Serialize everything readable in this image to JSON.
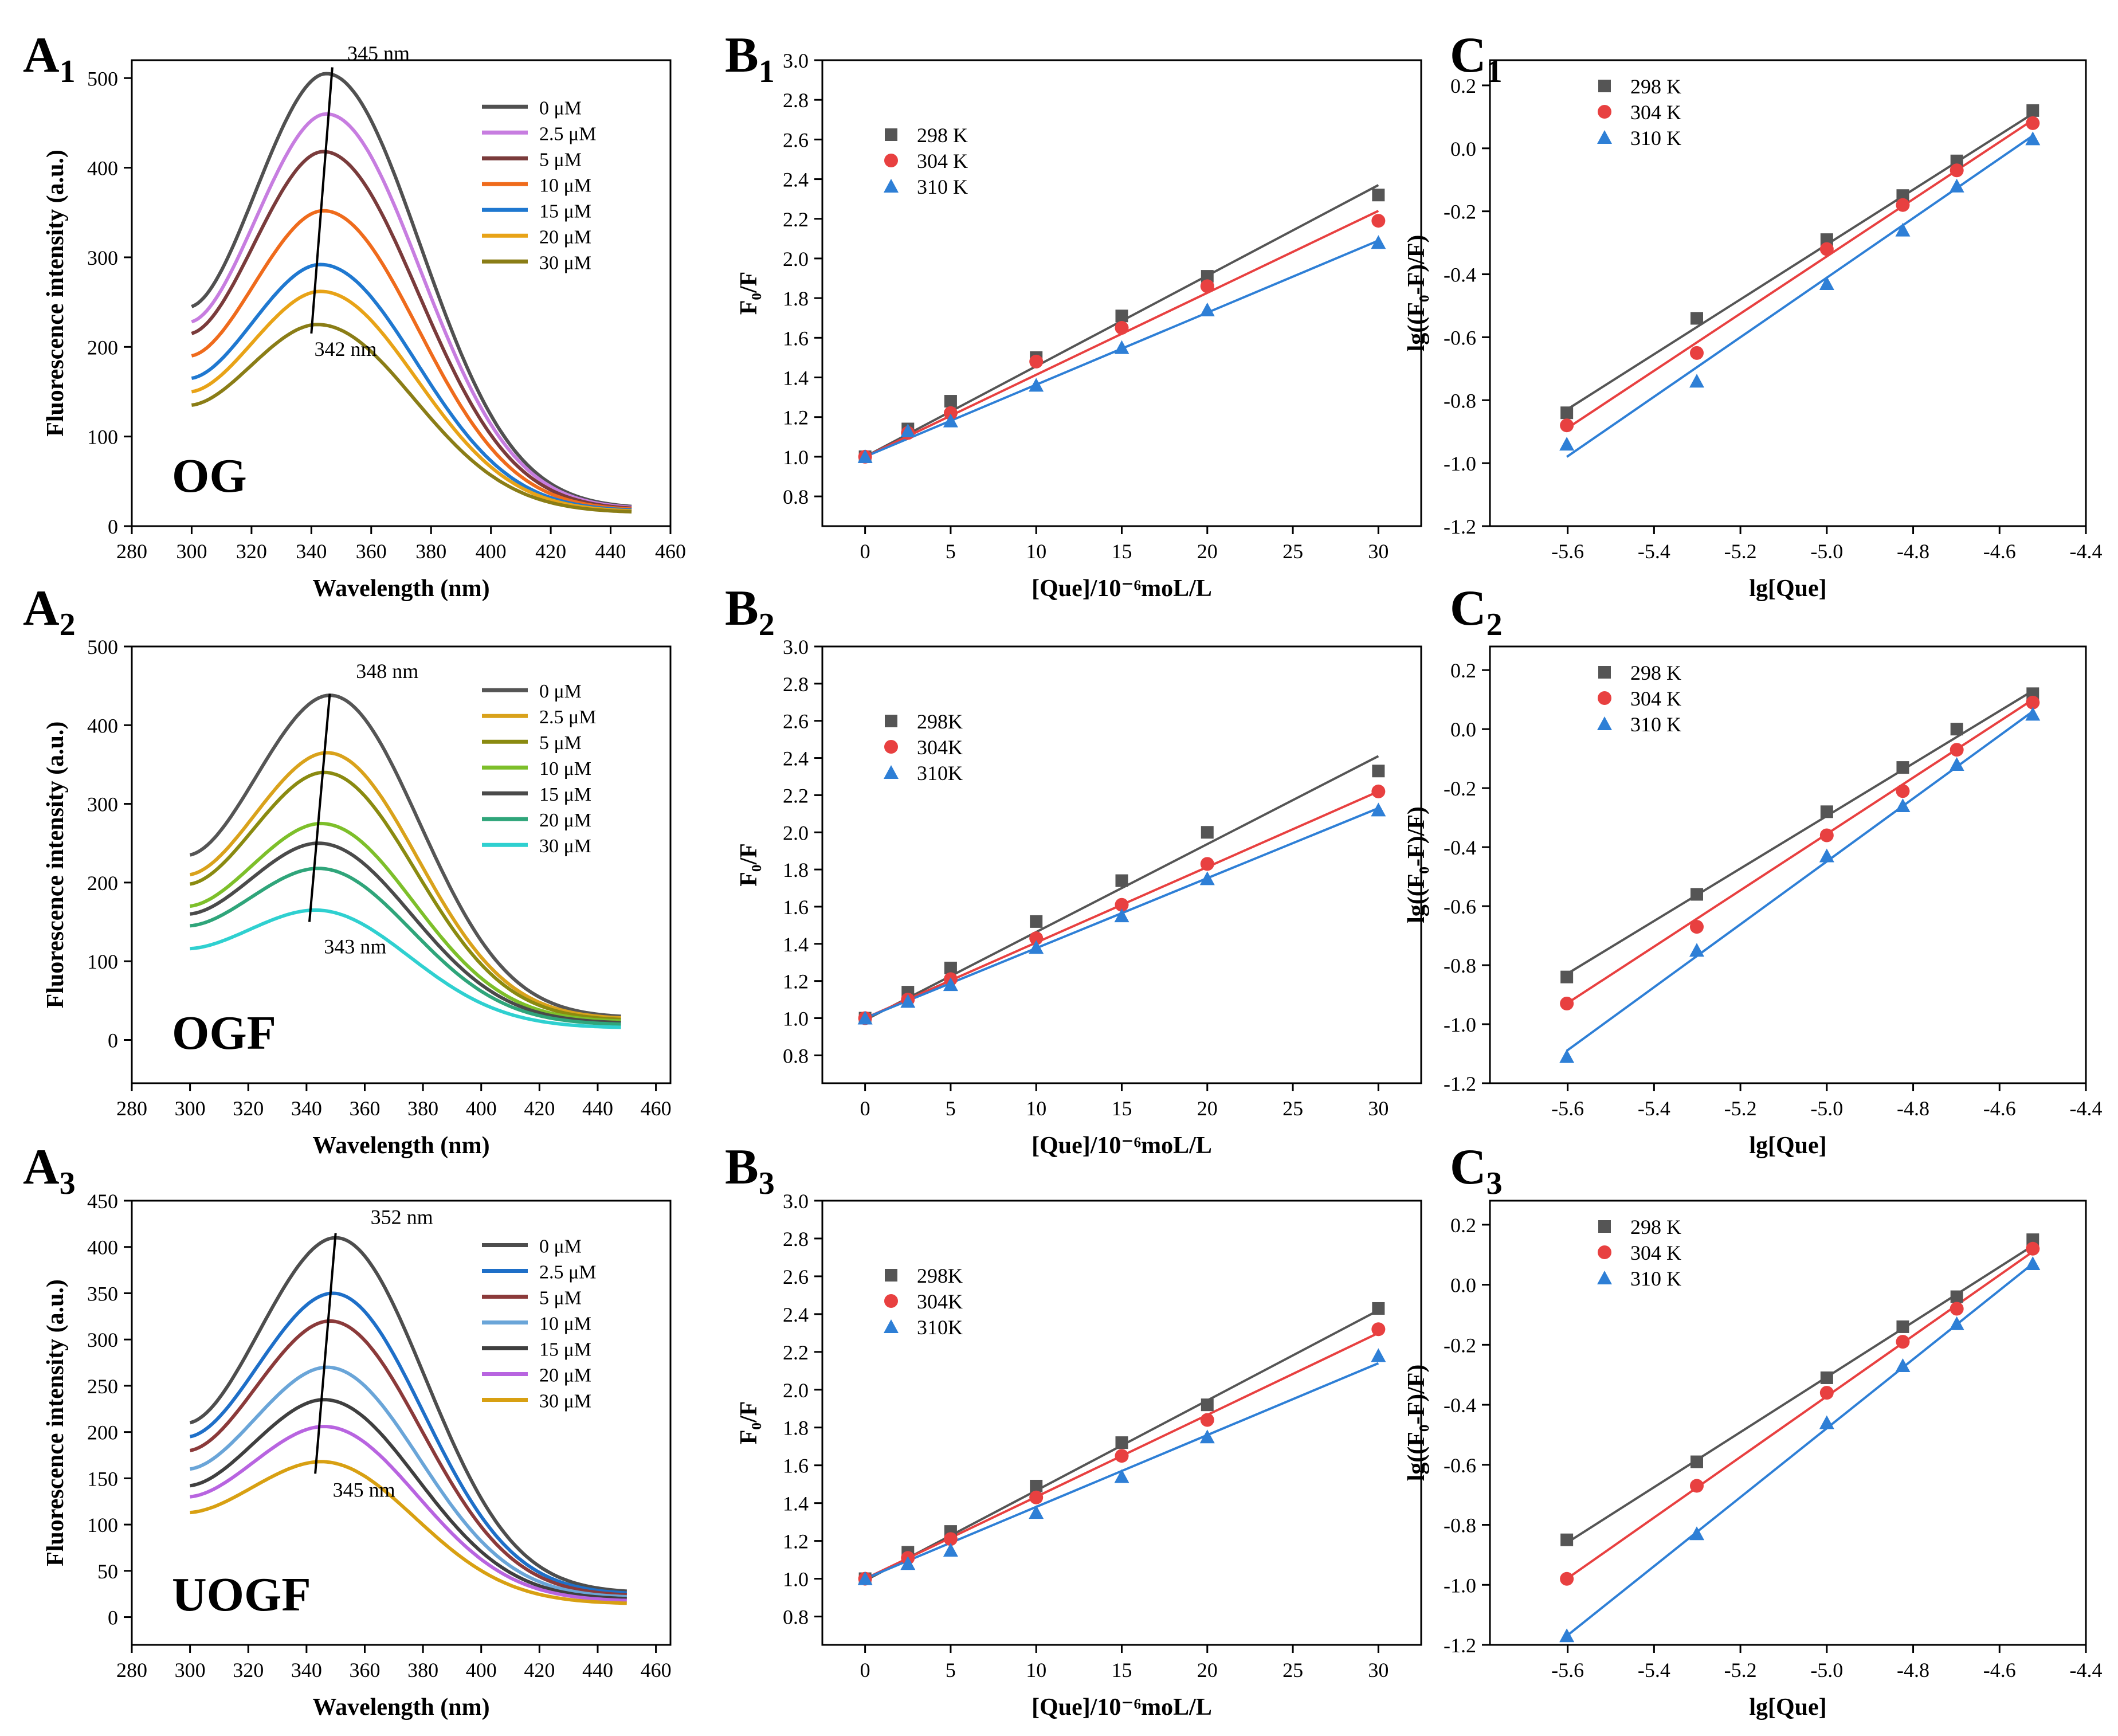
{
  "figure": {
    "background": "#ffffff"
  },
  "chart_data": [
    {
      "id": "A1",
      "type": "line",
      "panel_label": "A",
      "panel_sub": "1",
      "xlabel": "Wavelength (nm)",
      "ylabel": "Fluorescence intensity (a.u.)",
      "xlim": [
        280,
        460
      ],
      "ylim": [
        0,
        520
      ],
      "xticks": [
        280,
        300,
        320,
        340,
        360,
        380,
        400,
        420,
        440,
        460
      ],
      "yticks": [
        0,
        100,
        200,
        300,
        400,
        500
      ],
      "sample_label": "OG",
      "annotations": [
        {
          "text": "345 nm",
          "x": 352,
          "y": 520
        },
        {
          "text": "342 nm",
          "x": 341,
          "y": 190
        }
      ],
      "peak_line": {
        "from": [
          340,
          215
        ],
        "to": [
          347,
          512
        ]
      },
      "series": [
        {
          "name": "0 μM",
          "color": "#505050",
          "start": 245,
          "peak": 505,
          "peak_x": 345,
          "end": 22,
          "end_x": 447
        },
        {
          "name": "2.5 μM",
          "color": "#c77de0",
          "start": 228,
          "peak": 460,
          "peak_x": 345,
          "end": 21,
          "end_x": 447
        },
        {
          "name": "5 μM",
          "color": "#7a3b3b",
          "start": 215,
          "peak": 418,
          "peak_x": 344,
          "end": 20,
          "end_x": 447
        },
        {
          "name": "10 μM",
          "color": "#ef6b1c",
          "start": 190,
          "peak": 352,
          "peak_x": 344,
          "end": 19,
          "end_x": 447
        },
        {
          "name": "15 μM",
          "color": "#1f78d0",
          "start": 165,
          "peak": 292,
          "peak_x": 343,
          "end": 18,
          "end_x": 447
        },
        {
          "name": "20 μM",
          "color": "#e8a317",
          "start": 150,
          "peak": 262,
          "peak_x": 343,
          "end": 17,
          "end_x": 447
        },
        {
          "name": "30 μM",
          "color": "#8a7d16",
          "start": 135,
          "peak": 225,
          "peak_x": 342,
          "end": 16,
          "end_x": 447
        }
      ]
    },
    {
      "id": "B1",
      "type": "scatter",
      "panel_label": "B",
      "panel_sub": "1",
      "xlabel": "[Que]/10⁻⁶moL/L",
      "ylabel": "F₀/F",
      "xlim": [
        -2.5,
        32.5
      ],
      "ylim": [
        0.65,
        3.0
      ],
      "xticks": [
        0,
        5,
        10,
        15,
        20,
        25,
        30
      ],
      "yticks": [
        0.8,
        1.0,
        1.2,
        1.4,
        1.6,
        1.8,
        2.0,
        2.2,
        2.4,
        2.6,
        2.8,
        3.0
      ],
      "x": [
        0,
        2.5,
        5,
        10,
        15,
        20,
        30
      ],
      "series": [
        {
          "name": "298 K",
          "color": "#555555",
          "marker": "square",
          "values": [
            1.0,
            1.14,
            1.28,
            1.5,
            1.71,
            1.91,
            2.32
          ],
          "fit": [
            1.0,
            2.37
          ]
        },
        {
          "name": "304 K",
          "color": "#e84040",
          "marker": "circle",
          "values": [
            1.0,
            1.12,
            1.22,
            1.48,
            1.65,
            1.86,
            2.19
          ],
          "fit": [
            1.0,
            2.24
          ]
        },
        {
          "name": "310 K",
          "color": "#2e7fd6",
          "marker": "triangle",
          "values": [
            1.0,
            1.13,
            1.18,
            1.36,
            1.55,
            1.74,
            2.08
          ],
          "fit": [
            1.0,
            2.09
          ]
        }
      ]
    },
    {
      "id": "C1",
      "type": "scatter",
      "panel_label": "C",
      "panel_sub": "1",
      "xlabel": "lg[Que]",
      "ylabel": "lg((F₀-F)/F)",
      "xlim": [
        -5.78,
        -4.4
      ],
      "ylim": [
        -1.2,
        0.28
      ],
      "xticks": [
        -5.6,
        -5.4,
        -5.2,
        -5.0,
        -4.8,
        -4.6,
        -4.4
      ],
      "xtick_labels": [
        "-5.6",
        "-5.4",
        "-5.2",
        "-5.0",
        "-4.8",
        "-4.6",
        "-4.4"
      ],
      "yticks": [
        -1.2,
        -1.0,
        -0.8,
        -0.6,
        -0.4,
        -0.2,
        0.0,
        0.2
      ],
      "ytick_labels": [
        "-1.2",
        "-1.0",
        "-0.8",
        "-0.6",
        "-0.4",
        "-0.2",
        "0.0",
        "0.2"
      ],
      "x": [
        -5.602,
        -5.301,
        -5.0,
        -4.824,
        -4.699,
        -4.523
      ],
      "series": [
        {
          "name": "298 K",
          "color": "#555555",
          "marker": "square",
          "values": [
            -0.84,
            -0.54,
            -0.29,
            -0.15,
            -0.04,
            0.12
          ],
          "fit": [
            -0.83,
            0.11
          ]
        },
        {
          "name": "304 K",
          "color": "#e84040",
          "marker": "circle",
          "values": [
            -0.88,
            -0.65,
            -0.32,
            -0.18,
            -0.07,
            0.08
          ],
          "fit": [
            -0.89,
            0.09
          ]
        },
        {
          "name": "310 K",
          "color": "#2e7fd6",
          "marker": "triangle",
          "values": [
            -0.94,
            -0.74,
            -0.43,
            -0.26,
            -0.12,
            0.03
          ],
          "fit": [
            -0.98,
            0.04
          ]
        }
      ]
    },
    {
      "id": "A2",
      "type": "line",
      "panel_label": "A",
      "panel_sub": "2",
      "xlabel": "Wavelength (nm)",
      "ylabel": "Fluorescence intensity (a.u.)",
      "xlim": [
        280,
        465
      ],
      "ylim": [
        -55,
        500
      ],
      "xticks": [
        280,
        300,
        320,
        340,
        360,
        380,
        400,
        420,
        440,
        460
      ],
      "yticks": [
        0,
        100,
        200,
        300,
        400,
        500
      ],
      "sample_label": "OGF",
      "annotations": [
        {
          "text": "348 nm",
          "x": 357,
          "y": 460
        },
        {
          "text": "343 nm",
          "x": 346,
          "y": 110
        }
      ],
      "peak_line": {
        "from": [
          341,
          150
        ],
        "to": [
          348,
          440
        ]
      },
      "series": [
        {
          "name": "0 μM",
          "color": "#555555",
          "start": 235,
          "peak": 438,
          "peak_x": 348,
          "end": 30,
          "end_x": 448
        },
        {
          "name": "2.5 μM",
          "color": "#d9a21b",
          "start": 210,
          "peak": 365,
          "peak_x": 347,
          "end": 28,
          "end_x": 448
        },
        {
          "name": "5 μM",
          "color": "#8a8a10",
          "start": 198,
          "peak": 340,
          "peak_x": 346,
          "end": 26,
          "end_x": 448
        },
        {
          "name": "10 μM",
          "color": "#7dbf2a",
          "start": 170,
          "peak": 275,
          "peak_x": 345,
          "end": 24,
          "end_x": 448
        },
        {
          "name": "15 μM",
          "color": "#4a4a4a",
          "start": 160,
          "peak": 250,
          "peak_x": 344,
          "end": 22,
          "end_x": 448
        },
        {
          "name": "20 μM",
          "color": "#2fa57a",
          "start": 145,
          "peak": 218,
          "peak_x": 344,
          "end": 20,
          "end_x": 448
        },
        {
          "name": "30 μM",
          "color": "#2fd0d0",
          "start": 116,
          "peak": 165,
          "peak_x": 343,
          "end": 16,
          "end_x": 448
        }
      ]
    },
    {
      "id": "B2",
      "type": "scatter",
      "panel_label": "B",
      "panel_sub": "2",
      "xlabel": "[Que]/10⁻⁶moL/L",
      "ylabel": "F₀/F",
      "xlim": [
        -2.5,
        32.5
      ],
      "ylim": [
        0.65,
        3.0
      ],
      "xticks": [
        0,
        5,
        10,
        15,
        20,
        25,
        30
      ],
      "yticks": [
        0.8,
        1.0,
        1.2,
        1.4,
        1.6,
        1.8,
        2.0,
        2.2,
        2.4,
        2.6,
        2.8,
        3.0
      ],
      "x": [
        0,
        2.5,
        5,
        10,
        15,
        20,
        30
      ],
      "series": [
        {
          "name": "298K",
          "color": "#555555",
          "marker": "square",
          "values": [
            1.0,
            1.14,
            1.27,
            1.52,
            1.74,
            2.0,
            2.33
          ],
          "fit": [
            0.99,
            2.41
          ]
        },
        {
          "name": "304K",
          "color": "#e84040",
          "marker": "circle",
          "values": [
            1.0,
            1.1,
            1.21,
            1.43,
            1.61,
            1.83,
            2.22
          ],
          "fit": [
            1.0,
            2.22
          ]
        },
        {
          "name": "310K",
          "color": "#2e7fd6",
          "marker": "triangle",
          "values": [
            1.0,
            1.09,
            1.18,
            1.38,
            1.55,
            1.75,
            2.12
          ],
          "fit": [
            1.0,
            2.13
          ]
        }
      ]
    },
    {
      "id": "C2",
      "type": "scatter",
      "panel_label": "C",
      "panel_sub": "2",
      "xlabel": "lg[Que]",
      "ylabel": "lg((F₀-F)/F)",
      "xlim": [
        -5.78,
        -4.4
      ],
      "ylim": [
        -1.2,
        0.28
      ],
      "xticks": [
        -5.6,
        -5.4,
        -5.2,
        -5.0,
        -4.8,
        -4.6,
        -4.4
      ],
      "xtick_labels": [
        "-5.6",
        "-5.4",
        "-5.2",
        "-5.0",
        "-4.8",
        "-4.6",
        "-4.4"
      ],
      "yticks": [
        -1.2,
        -1.0,
        -0.8,
        -0.6,
        -0.4,
        -0.2,
        0.0,
        0.2
      ],
      "ytick_labels": [
        "-1.2",
        "-1.0",
        "-0.8",
        "-0.6",
        "-0.4",
        "-0.2",
        "0.0",
        "0.2"
      ],
      "x": [
        -5.602,
        -5.301,
        -5.0,
        -4.824,
        -4.699,
        -4.523
      ],
      "series": [
        {
          "name": "298 K",
          "color": "#555555",
          "marker": "square",
          "values": [
            -0.84,
            -0.56,
            -0.28,
            -0.13,
            0.0,
            0.12
          ],
          "fit": [
            -0.83,
            0.13
          ]
        },
        {
          "name": "304 K",
          "color": "#e84040",
          "marker": "circle",
          "values": [
            -0.93,
            -0.67,
            -0.36,
            -0.21,
            -0.07,
            0.09
          ],
          "fit": [
            -0.93,
            0.1
          ]
        },
        {
          "name": "310 K",
          "color": "#2e7fd6",
          "marker": "triangle",
          "values": [
            -1.11,
            -0.75,
            -0.43,
            -0.26,
            -0.12,
            0.05
          ],
          "fit": [
            -1.09,
            0.06
          ]
        }
      ]
    },
    {
      "id": "A3",
      "type": "line",
      "panel_label": "A",
      "panel_sub": "3",
      "xlabel": "Wavelength (nm)",
      "ylabel": "Fluorescence intensity (a.u.)",
      "xlim": [
        280,
        465
      ],
      "ylim": [
        -30,
        450
      ],
      "xticks": [
        280,
        300,
        320,
        340,
        360,
        380,
        400,
        420,
        440,
        460
      ],
      "yticks": [
        0,
        50,
        100,
        150,
        200,
        250,
        300,
        350,
        400,
        450
      ],
      "sample_label": "UOGF",
      "annotations": [
        {
          "text": "352 nm",
          "x": 362,
          "y": 425
        },
        {
          "text": "345 nm",
          "x": 349,
          "y": 130
        }
      ],
      "peak_line": {
        "from": [
          343,
          155
        ],
        "to": [
          350,
          415
        ]
      },
      "series": [
        {
          "name": "0 μM",
          "color": "#4d4d4d",
          "start": 210,
          "peak": 410,
          "peak_x": 350,
          "end": 28,
          "end_x": 450
        },
        {
          "name": "2.5 μM",
          "color": "#1e6fc8",
          "start": 195,
          "peak": 350,
          "peak_x": 349,
          "end": 26,
          "end_x": 450
        },
        {
          "name": "5 μM",
          "color": "#8b3a3a",
          "start": 180,
          "peak": 320,
          "peak_x": 348,
          "end": 24,
          "end_x": 450
        },
        {
          "name": "10 μM",
          "color": "#6aa5d8",
          "start": 160,
          "peak": 270,
          "peak_x": 347,
          "end": 22,
          "end_x": 450
        },
        {
          "name": "15 μM",
          "color": "#3f3f3f",
          "start": 142,
          "peak": 235,
          "peak_x": 346,
          "end": 20,
          "end_x": 450
        },
        {
          "name": "20 μM",
          "color": "#b864e0",
          "start": 130,
          "peak": 206,
          "peak_x": 346,
          "end": 18,
          "end_x": 450
        },
        {
          "name": "30 μM",
          "color": "#d8a012",
          "start": 113,
          "peak": 168,
          "peak_x": 345,
          "end": 15,
          "end_x": 450
        }
      ]
    },
    {
      "id": "B3",
      "type": "scatter",
      "panel_label": "B",
      "panel_sub": "3",
      "xlabel": "[Que]/10⁻⁶moL/L",
      "ylabel": "F₀/F",
      "xlim": [
        -2.5,
        32.5
      ],
      "ylim": [
        0.65,
        3.0
      ],
      "xticks": [
        0,
        5,
        10,
        15,
        20,
        25,
        30
      ],
      "yticks": [
        0.8,
        1.0,
        1.2,
        1.4,
        1.6,
        1.8,
        2.0,
        2.2,
        2.4,
        2.6,
        2.8,
        3.0
      ],
      "x": [
        0,
        2.5,
        5,
        10,
        15,
        20,
        30
      ],
      "series": [
        {
          "name": "298K",
          "color": "#555555",
          "marker": "square",
          "values": [
            1.0,
            1.14,
            1.25,
            1.49,
            1.72,
            1.92,
            2.43
          ],
          "fit": [
            0.99,
            2.42
          ]
        },
        {
          "name": "304K",
          "color": "#e84040",
          "marker": "circle",
          "values": [
            1.0,
            1.11,
            1.21,
            1.43,
            1.65,
            1.84,
            2.32
          ],
          "fit": [
            1.0,
            2.3
          ]
        },
        {
          "name": "310K",
          "color": "#2e7fd6",
          "marker": "triangle",
          "values": [
            1.0,
            1.08,
            1.15,
            1.35,
            1.54,
            1.75,
            2.18
          ],
          "fit": [
            1.0,
            2.14
          ]
        }
      ]
    },
    {
      "id": "C3",
      "type": "scatter",
      "panel_label": "C",
      "panel_sub": "3",
      "xlabel": "lg[Que]",
      "ylabel": "lg((F₀-F)/F)",
      "xlim": [
        -5.78,
        -4.4
      ],
      "ylim": [
        -1.2,
        0.28
      ],
      "xticks": [
        -5.6,
        -5.4,
        -5.2,
        -5.0,
        -4.8,
        -4.6,
        -4.4
      ],
      "xtick_labels": [
        "-5.6",
        "-5.4",
        "-5.2",
        "-5.0",
        "-4.8",
        "-4.6",
        "-4.4"
      ],
      "yticks": [
        -1.2,
        -1.0,
        -0.8,
        -0.6,
        -0.4,
        -0.2,
        0.0,
        0.2
      ],
      "ytick_labels": [
        "-1.2",
        "-1.0",
        "-0.8",
        "-0.6",
        "-0.4",
        "-0.2",
        "0.0",
        "0.2"
      ],
      "x": [
        -5.602,
        -5.301,
        -5.0,
        -4.824,
        -4.699,
        -4.523
      ],
      "series": [
        {
          "name": "298 K",
          "color": "#555555",
          "marker": "square",
          "values": [
            -0.85,
            -0.59,
            -0.31,
            -0.14,
            -0.04,
            0.15
          ],
          "fit": [
            -0.86,
            0.13
          ]
        },
        {
          "name": "304 K",
          "color": "#e84040",
          "marker": "circle",
          "values": [
            -0.98,
            -0.67,
            -0.36,
            -0.19,
            -0.08,
            0.12
          ],
          "fit": [
            -0.98,
            0.11
          ]
        },
        {
          "name": "310 K",
          "color": "#2e7fd6",
          "marker": "triangle",
          "values": [
            -1.17,
            -0.83,
            -0.46,
            -0.27,
            -0.13,
            0.07
          ],
          "fit": [
            -1.17,
            0.07
          ]
        }
      ]
    }
  ]
}
